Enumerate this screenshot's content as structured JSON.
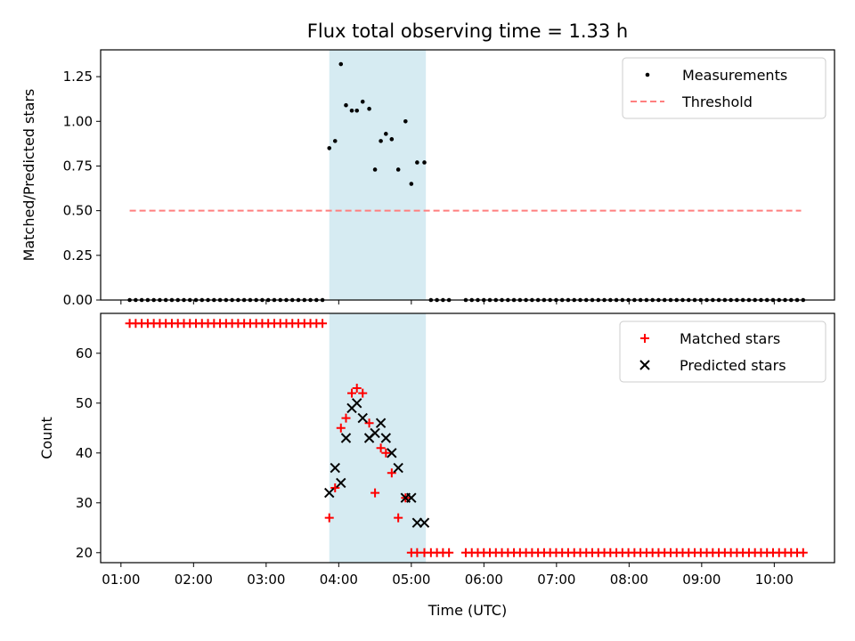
{
  "chart_data": [
    {
      "type": "scatter",
      "title": "Flux total observing time = 1.33 h",
      "xlabel": "",
      "ylabel": "Matched/Predicted stars",
      "ylim": [
        0,
        1.4
      ],
      "yticks": [
        0.0,
        0.25,
        0.5,
        0.75,
        1.0,
        1.25
      ],
      "ytick_labels": [
        "0.00",
        "0.25",
        "0.50",
        "0.75",
        "1.00",
        "1.25"
      ],
      "xlim_hours": [
        0.72,
        10.83
      ],
      "x_unit": "hours UTC",
      "shaded_region_hours": [
        3.87,
        5.2
      ],
      "shade_color": "#add8e6",
      "legend_position": "top-right",
      "series": [
        {
          "name": "Measurements",
          "kind": "dots",
          "color": "#000000",
          "points": [
            [
              3.87,
              0.85
            ],
            [
              3.95,
              0.89
            ],
            [
              4.03,
              1.32
            ],
            [
              4.1,
              1.09
            ],
            [
              4.18,
              1.06
            ],
            [
              4.25,
              1.06
            ],
            [
              4.33,
              1.11
            ],
            [
              4.42,
              1.07
            ],
            [
              4.5,
              0.73
            ],
            [
              4.58,
              0.89
            ],
            [
              4.65,
              0.93
            ],
            [
              4.73,
              0.9
            ],
            [
              4.82,
              0.73
            ],
            [
              4.92,
              1.0
            ],
            [
              5.0,
              0.65
            ],
            [
              5.08,
              0.77
            ],
            [
              5.18,
              0.77
            ]
          ],
          "zero_runs": [
            {
              "from": 1.12,
              "to": 3.78,
              "step": 0.083
            },
            {
              "from": 5.27,
              "to": 5.55,
              "step": 0.083
            },
            {
              "from": 5.75,
              "to": 10.37,
              "step": 0.083
            }
          ]
        },
        {
          "name": "Threshold",
          "kind": "dashed-line",
          "color": "#ff7f7f",
          "y": 0.5,
          "x_from": 1.12,
          "x_to": 10.37
        }
      ]
    },
    {
      "type": "scatter",
      "title": "",
      "xlabel": "Time (UTC)",
      "ylabel": "Count",
      "ylim": [
        18,
        68
      ],
      "yticks": [
        20,
        30,
        40,
        50,
        60
      ],
      "ytick_labels": [
        "20",
        "30",
        "40",
        "50",
        "60"
      ],
      "xlim_hours": [
        0.72,
        10.83
      ],
      "xticks_hours": [
        1,
        2,
        3,
        4,
        5,
        6,
        7,
        8,
        9,
        10
      ],
      "xtick_labels": [
        "01:00",
        "02:00",
        "03:00",
        "04:00",
        "05:00",
        "06:00",
        "07:00",
        "08:00",
        "09:00",
        "10:00"
      ],
      "shaded_region_hours": [
        3.87,
        5.2
      ],
      "shade_color": "#add8e6",
      "legend_position": "top-right",
      "series": [
        {
          "name": "Matched stars",
          "kind": "plus",
          "color": "#ff0000",
          "points": [
            [
              3.87,
              27
            ],
            [
              3.95,
              33
            ],
            [
              4.03,
              45
            ],
            [
              4.1,
              47
            ],
            [
              4.18,
              52
            ],
            [
              4.25,
              53
            ],
            [
              4.33,
              52
            ],
            [
              4.42,
              46
            ],
            [
              4.5,
              32
            ],
            [
              4.58,
              41
            ],
            [
              4.65,
              40
            ],
            [
              4.73,
              36
            ],
            [
              4.82,
              27
            ],
            [
              4.92,
              31
            ],
            [
              5.0,
              20
            ],
            [
              5.08,
              20
            ],
            [
              5.18,
              20
            ]
          ],
          "constant_runs": [
            {
              "from": 1.12,
              "to": 3.78,
              "step": 0.083,
              "y": 66
            },
            {
              "from": 5.27,
              "to": 5.55,
              "step": 0.083,
              "y": 20
            },
            {
              "from": 5.75,
              "to": 10.37,
              "step": 0.083,
              "y": 20
            }
          ]
        },
        {
          "name": "Predicted stars",
          "kind": "x",
          "color": "#000000",
          "points": [
            [
              3.87,
              32
            ],
            [
              3.95,
              37
            ],
            [
              4.03,
              34
            ],
            [
              4.1,
              43
            ],
            [
              4.18,
              49
            ],
            [
              4.25,
              50
            ],
            [
              4.33,
              47
            ],
            [
              4.42,
              43
            ],
            [
              4.5,
              44
            ],
            [
              4.58,
              46
            ],
            [
              4.65,
              43
            ],
            [
              4.73,
              40
            ],
            [
              4.82,
              37
            ],
            [
              4.92,
              31
            ],
            [
              5.0,
              31
            ],
            [
              5.08,
              26
            ],
            [
              5.18,
              26
            ]
          ]
        }
      ]
    }
  ]
}
